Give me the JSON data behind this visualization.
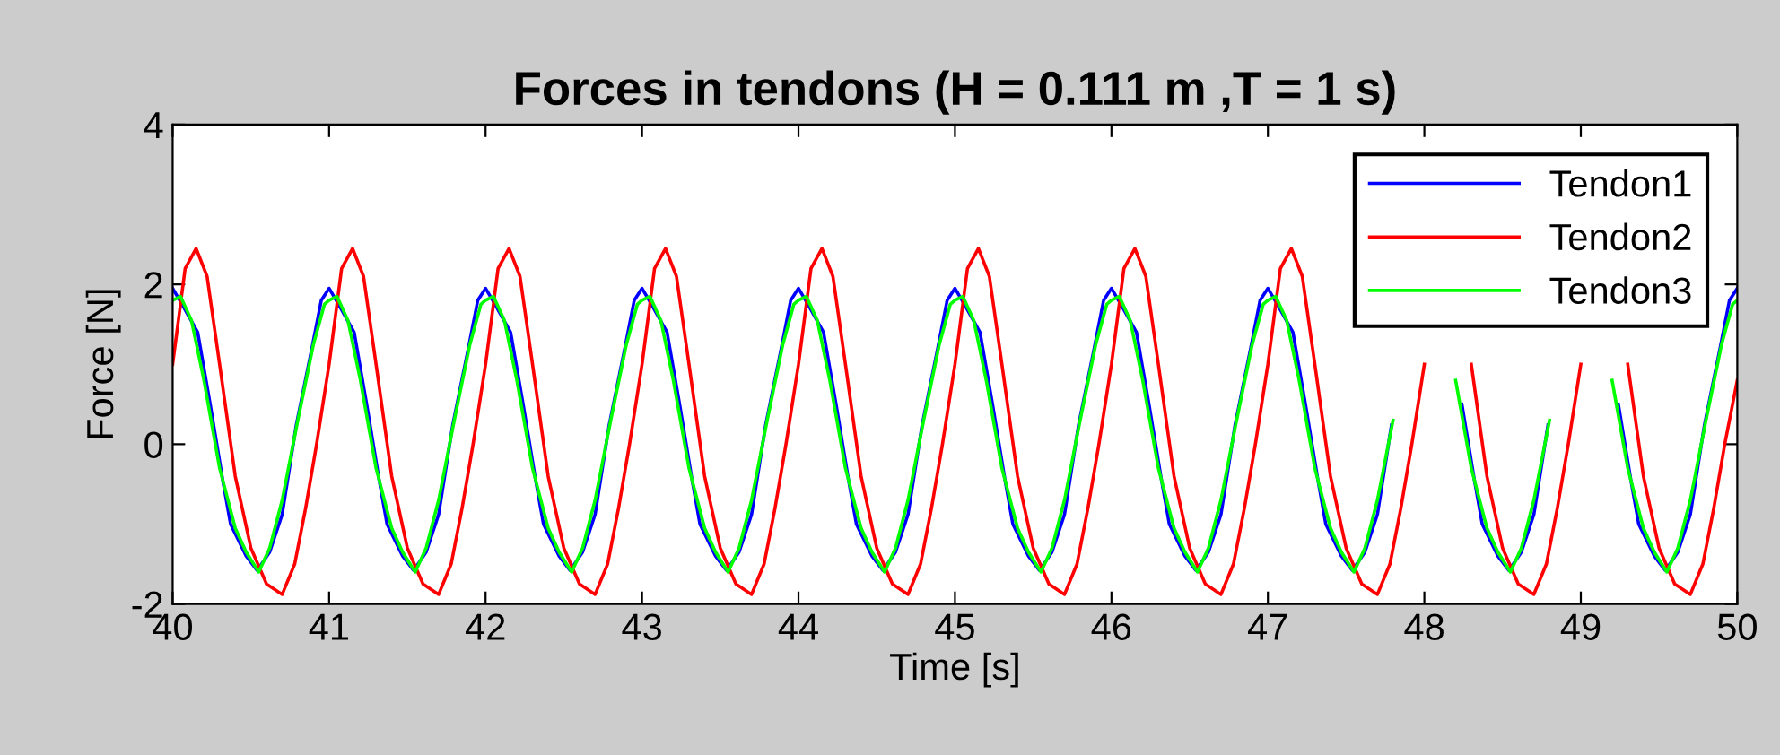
{
  "chart_data": {
    "type": "line",
    "title": "Forces in tendons (H = 0.111 m ,T = 1 s)",
    "xlabel": "Time [s]",
    "ylabel": "Force [N]",
    "xlim": [
      40,
      50
    ],
    "xticks": [
      40,
      41,
      42,
      43,
      44,
      45,
      46,
      47,
      48,
      49,
      50
    ],
    "ylim": [
      -2,
      4
    ],
    "yticks": [
      -2,
      0,
      2,
      4
    ],
    "grid": false,
    "legend": "top right",
    "series": [
      {
        "name": "Tendon1",
        "color": "#0000ff",
        "x": [
          40.0,
          40.06,
          40.16,
          40.24,
          40.32,
          40.37,
          40.47,
          40.54,
          40.62,
          40.7,
          40.79,
          40.89,
          40.95,
          41.0,
          41.06,
          41.16,
          41.24,
          41.32,
          41.37,
          41.47,
          41.54,
          41.62,
          41.7,
          41.79,
          41.89,
          41.95,
          42.0,
          42.06,
          42.16,
          42.24,
          42.32,
          42.37,
          42.47,
          42.54,
          42.62,
          42.7,
          42.79,
          42.89,
          42.95,
          43.0,
          43.06,
          43.16,
          43.24,
          43.32,
          43.37,
          43.47,
          43.54,
          43.62,
          43.7,
          43.79,
          43.89,
          43.95,
          44.0,
          44.06,
          44.16,
          44.24,
          44.32,
          44.37,
          44.47,
          44.54,
          44.62,
          44.7,
          44.79,
          44.89,
          44.95,
          45.0,
          45.06,
          45.16,
          45.24,
          45.32,
          45.37,
          45.47,
          45.54,
          45.62,
          45.7,
          45.79,
          45.89,
          45.95,
          46.0,
          46.06,
          46.16,
          46.24,
          46.32,
          46.37,
          46.47,
          46.54,
          46.62,
          46.7,
          46.79,
          46.89,
          46.95,
          47.0,
          47.06,
          47.16,
          47.24,
          47.32,
          47.37,
          47.47,
          47.54,
          47.62,
          47.7,
          47.79,
          47.89,
          47.95,
          48.0,
          48.06,
          48.16,
          48.24,
          48.32,
          48.37,
          48.47,
          48.54,
          48.62,
          48.7,
          48.79,
          48.89,
          48.95,
          49.0,
          49.06,
          49.16,
          49.24,
          49.32,
          49.37,
          49.47,
          49.54,
          49.62,
          49.7,
          49.79,
          49.89,
          49.95,
          50.0
        ],
        "values": [
          1.95,
          1.75,
          1.4,
          0.5,
          -0.45,
          -1.0,
          -1.4,
          -1.58,
          -1.35,
          -0.88,
          0.24,
          1.2,
          1.8,
          1.95,
          1.75,
          1.4,
          0.5,
          -0.45,
          -1.0,
          -1.4,
          -1.58,
          -1.35,
          -0.88,
          0.24,
          1.2,
          1.8,
          1.95,
          1.75,
          1.4,
          0.5,
          -0.45,
          -1.0,
          -1.4,
          -1.58,
          -1.35,
          -0.88,
          0.24,
          1.2,
          1.8,
          1.95,
          1.75,
          1.4,
          0.5,
          -0.45,
          -1.0,
          -1.4,
          -1.58,
          -1.35,
          -0.88,
          0.24,
          1.2,
          1.8,
          1.95,
          1.75,
          1.4,
          0.5,
          -0.45,
          -1.0,
          -1.4,
          -1.58,
          -1.35,
          -0.88,
          0.24,
          1.2,
          1.8,
          1.95,
          1.75,
          1.4,
          0.5,
          -0.45,
          -1.0,
          -1.4,
          -1.58,
          -1.35,
          -0.88,
          0.24,
          1.2,
          1.8,
          1.95,
          1.75,
          1.4,
          0.5,
          -0.45,
          -1.0,
          -1.4,
          -1.58,
          -1.35,
          -0.88,
          0.24,
          1.2,
          1.8,
          1.95,
          1.75,
          1.4,
          0.5,
          -0.45,
          -1.0,
          -1.4,
          -1.58,
          -1.35,
          -0.88,
          0.24,
          null,
          null,
          null,
          null,
          null,
          0.5,
          -0.45,
          -1.0,
          -1.4,
          -1.58,
          -1.35,
          -0.88,
          0.24,
          null,
          null,
          null,
          null,
          null,
          0.5,
          -0.45,
          -1.0,
          -1.4,
          -1.58,
          -1.35,
          -0.88,
          0.24,
          1.2,
          1.8,
          1.95
        ]
      },
      {
        "name": "Tendon2",
        "color": "#ff0000",
        "x": [
          40.0,
          40.08,
          40.15,
          40.22,
          40.3,
          40.4,
          40.5,
          40.6,
          40.7,
          40.78,
          40.85,
          40.92,
          41.0,
          41.08,
          41.15,
          41.22,
          41.3,
          41.4,
          41.5,
          41.6,
          41.7,
          41.78,
          41.85,
          41.92,
          42.0,
          42.08,
          42.15,
          42.22,
          42.3,
          42.4,
          42.5,
          42.6,
          42.7,
          42.78,
          42.85,
          42.92,
          43.0,
          43.08,
          43.15,
          43.22,
          43.3,
          43.4,
          43.5,
          43.6,
          43.7,
          43.78,
          43.85,
          43.92,
          44.0,
          44.08,
          44.15,
          44.22,
          44.3,
          44.4,
          44.5,
          44.6,
          44.7,
          44.78,
          44.85,
          44.92,
          45.0,
          45.08,
          45.15,
          45.22,
          45.3,
          45.4,
          45.5,
          45.6,
          45.7,
          45.78,
          45.85,
          45.92,
          46.0,
          46.08,
          46.15,
          46.22,
          46.3,
          46.4,
          46.5,
          46.6,
          46.7,
          46.78,
          46.85,
          46.92,
          47.0,
          47.08,
          47.15,
          47.22,
          47.3,
          47.4,
          47.5,
          47.6,
          47.7,
          47.78,
          47.85,
          47.92,
          48.0,
          48.08,
          48.15,
          48.22,
          48.3,
          48.4,
          48.5,
          48.6,
          48.7,
          48.78,
          48.85,
          48.92,
          49.0,
          49.08,
          49.15,
          49.22,
          49.3,
          49.4,
          49.5,
          49.6,
          49.7,
          49.78,
          49.85,
          49.92,
          50.0
        ],
        "values": [
          1.0,
          2.2,
          2.45,
          2.1,
          1.0,
          -0.4,
          -1.3,
          -1.75,
          -1.88,
          -1.5,
          -0.8,
          0.0,
          1.0,
          2.2,
          2.45,
          2.1,
          1.0,
          -0.4,
          -1.3,
          -1.75,
          -1.88,
          -1.5,
          -0.8,
          0.0,
          1.0,
          2.2,
          2.45,
          2.1,
          1.0,
          -0.4,
          -1.3,
          -1.75,
          -1.88,
          -1.5,
          -0.8,
          0.0,
          1.0,
          2.2,
          2.45,
          2.1,
          1.0,
          -0.4,
          -1.3,
          -1.75,
          -1.88,
          -1.5,
          -0.8,
          0.0,
          1.0,
          2.2,
          2.45,
          2.1,
          1.0,
          -0.4,
          -1.3,
          -1.75,
          -1.88,
          -1.5,
          -0.8,
          0.0,
          1.0,
          2.2,
          2.45,
          2.1,
          1.0,
          -0.4,
          -1.3,
          -1.75,
          -1.88,
          -1.5,
          -0.8,
          0.0,
          1.0,
          2.2,
          2.45,
          2.1,
          1.0,
          -0.4,
          -1.3,
          -1.75,
          -1.88,
          -1.5,
          -0.8,
          0.0,
          1.0,
          2.2,
          2.45,
          2.1,
          1.0,
          -0.4,
          -1.3,
          -1.75,
          -1.88,
          -1.5,
          -0.8,
          0.0,
          1.0,
          null,
          null,
          null,
          1.0,
          -0.4,
          -1.3,
          -1.75,
          -1.88,
          -1.5,
          -0.8,
          0.0,
          1.0,
          null,
          null,
          null,
          1.0,
          -0.4,
          -1.3,
          -1.75,
          -1.88,
          -1.5,
          -0.8,
          0.0,
          0.8
        ]
      },
      {
        "name": "Tendon3",
        "color": "#00ff00",
        "x": [
          40.0,
          40.05,
          40.12,
          40.2,
          40.3,
          40.4,
          40.47,
          40.55,
          40.62,
          40.7,
          40.8,
          40.9,
          40.97,
          41.0,
          41.05,
          41.12,
          41.2,
          41.3,
          41.4,
          41.47,
          41.55,
          41.62,
          41.7,
          41.8,
          41.9,
          41.97,
          42.0,
          42.05,
          42.12,
          42.2,
          42.3,
          42.4,
          42.47,
          42.55,
          42.62,
          42.7,
          42.8,
          42.9,
          42.97,
          43.0,
          43.05,
          43.12,
          43.2,
          43.3,
          43.4,
          43.47,
          43.55,
          43.62,
          43.7,
          43.8,
          43.9,
          43.97,
          44.0,
          44.05,
          44.12,
          44.2,
          44.3,
          44.4,
          44.47,
          44.55,
          44.62,
          44.7,
          44.8,
          44.9,
          44.97,
          45.0,
          45.05,
          45.12,
          45.2,
          45.3,
          45.4,
          45.47,
          45.55,
          45.62,
          45.7,
          45.8,
          45.9,
          45.97,
          46.0,
          46.05,
          46.12,
          46.2,
          46.3,
          46.4,
          46.47,
          46.55,
          46.62,
          46.7,
          46.8,
          46.9,
          46.97,
          47.0,
          47.05,
          47.12,
          47.2,
          47.3,
          47.4,
          47.47,
          47.55,
          47.62,
          47.7,
          47.8,
          47.9,
          47.97,
          48.0,
          48.05,
          48.12,
          48.2,
          48.3,
          48.4,
          48.47,
          48.55,
          48.62,
          48.7,
          48.8,
          48.9,
          48.97,
          49.0,
          49.05,
          49.12,
          49.2,
          49.3,
          49.4,
          49.47,
          49.55,
          49.62,
          49.7,
          49.8,
          49.9,
          49.97,
          50.0
        ],
        "values": [
          1.8,
          1.85,
          1.55,
          0.8,
          -0.3,
          -1.05,
          -1.35,
          -1.6,
          -1.3,
          -0.7,
          0.3,
          1.25,
          1.75,
          1.8,
          1.85,
          1.55,
          0.8,
          -0.3,
          -1.05,
          -1.35,
          -1.6,
          -1.3,
          -0.7,
          0.3,
          1.25,
          1.75,
          1.8,
          1.85,
          1.55,
          0.8,
          -0.3,
          -1.05,
          -1.35,
          -1.6,
          -1.3,
          -0.7,
          0.3,
          1.25,
          1.75,
          1.8,
          1.85,
          1.55,
          0.8,
          -0.3,
          -1.05,
          -1.35,
          -1.6,
          -1.3,
          -0.7,
          0.3,
          1.25,
          1.75,
          1.8,
          1.85,
          1.55,
          0.8,
          -0.3,
          -1.05,
          -1.35,
          -1.6,
          -1.3,
          -0.7,
          0.3,
          1.25,
          1.75,
          1.8,
          1.85,
          1.55,
          0.8,
          -0.3,
          -1.05,
          -1.35,
          -1.6,
          -1.3,
          -0.7,
          0.3,
          1.25,
          1.75,
          1.8,
          1.85,
          1.55,
          0.8,
          -0.3,
          -1.05,
          -1.35,
          -1.6,
          -1.3,
          -0.7,
          0.3,
          1.25,
          1.75,
          1.8,
          1.85,
          1.55,
          0.8,
          -0.3,
          -1.05,
          -1.35,
          -1.6,
          -1.3,
          -0.7,
          0.3,
          null,
          null,
          null,
          null,
          null,
          0.8,
          -0.3,
          -1.05,
          -1.35,
          -1.6,
          -1.3,
          -0.7,
          0.3,
          null,
          null,
          null,
          null,
          null,
          0.8,
          -0.3,
          -1.05,
          -1.35,
          -1.6,
          -1.3,
          -0.7,
          0.3,
          1.25,
          1.75,
          1.8
        ]
      }
    ]
  }
}
